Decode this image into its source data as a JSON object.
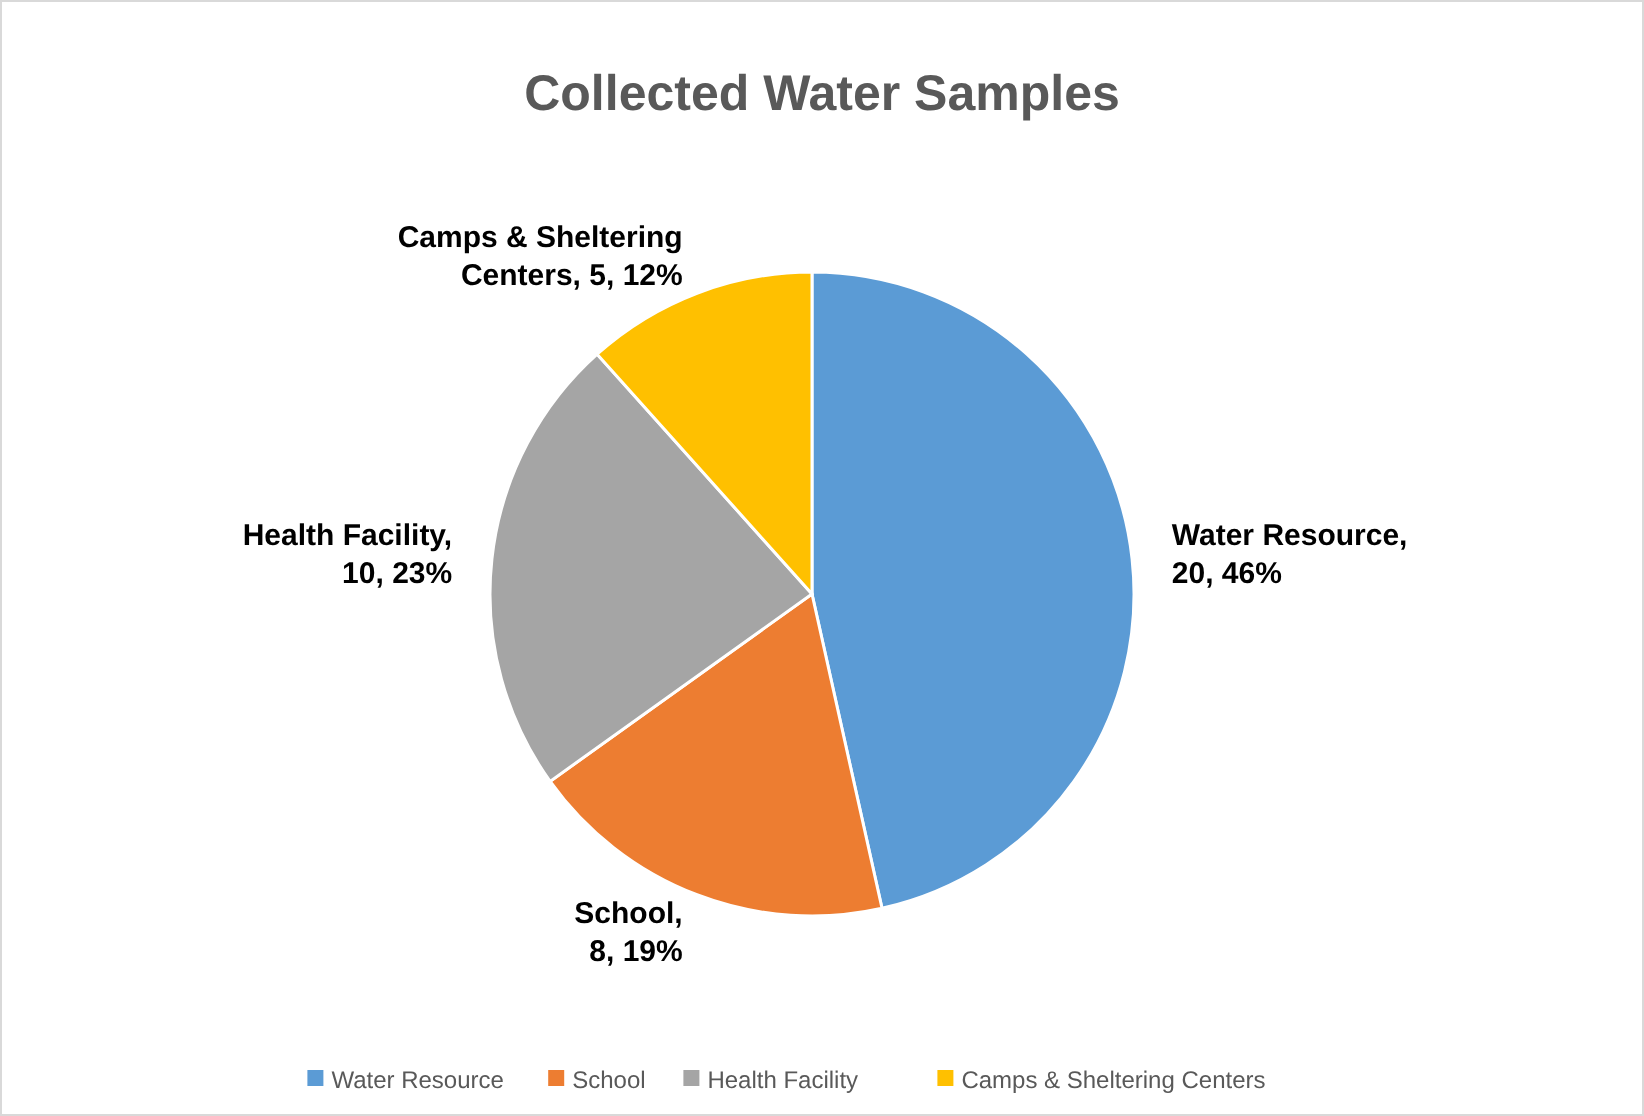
{
  "chart_data": {
    "type": "pie",
    "title": "Collected Water Samples",
    "categories": [
      "Water Resource",
      "School",
      "Health Facility",
      "Camps & Sheltering Centers"
    ],
    "values": [
      20,
      8,
      10,
      5
    ],
    "colors": [
      "#5b9bd5",
      "#ed7d31",
      "#a5a5a5",
      "#ffc000"
    ],
    "value_labels": [
      "Water Resource,\n20, 46%",
      "School,\n8, 19%",
      "Health Facility,\n10, 23%",
      "Camps & Sheltering\nCenters, 5, 12%"
    ],
    "legend": "bottom"
  }
}
